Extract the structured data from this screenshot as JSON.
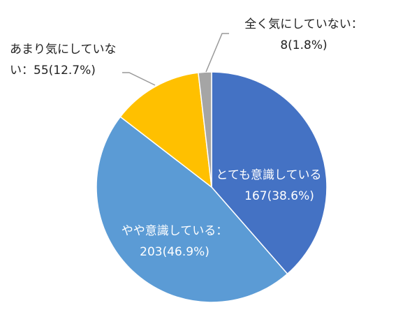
{
  "chart_data": {
    "type": "pie",
    "categories": [
      "とても意識している",
      "やや意識している：",
      "あまり気にしていない：",
      "全く気にしていない："
    ],
    "values": [
      167,
      203,
      55,
      8
    ],
    "value_labels": [
      "167(38.6%)",
      "203(46.9%)",
      "55(12.7%)",
      "8(1.8%)"
    ],
    "colors": [
      "#4472c4",
      "#5b9bd5",
      "#ffc000",
      "#a5a5a5"
    ]
  }
}
